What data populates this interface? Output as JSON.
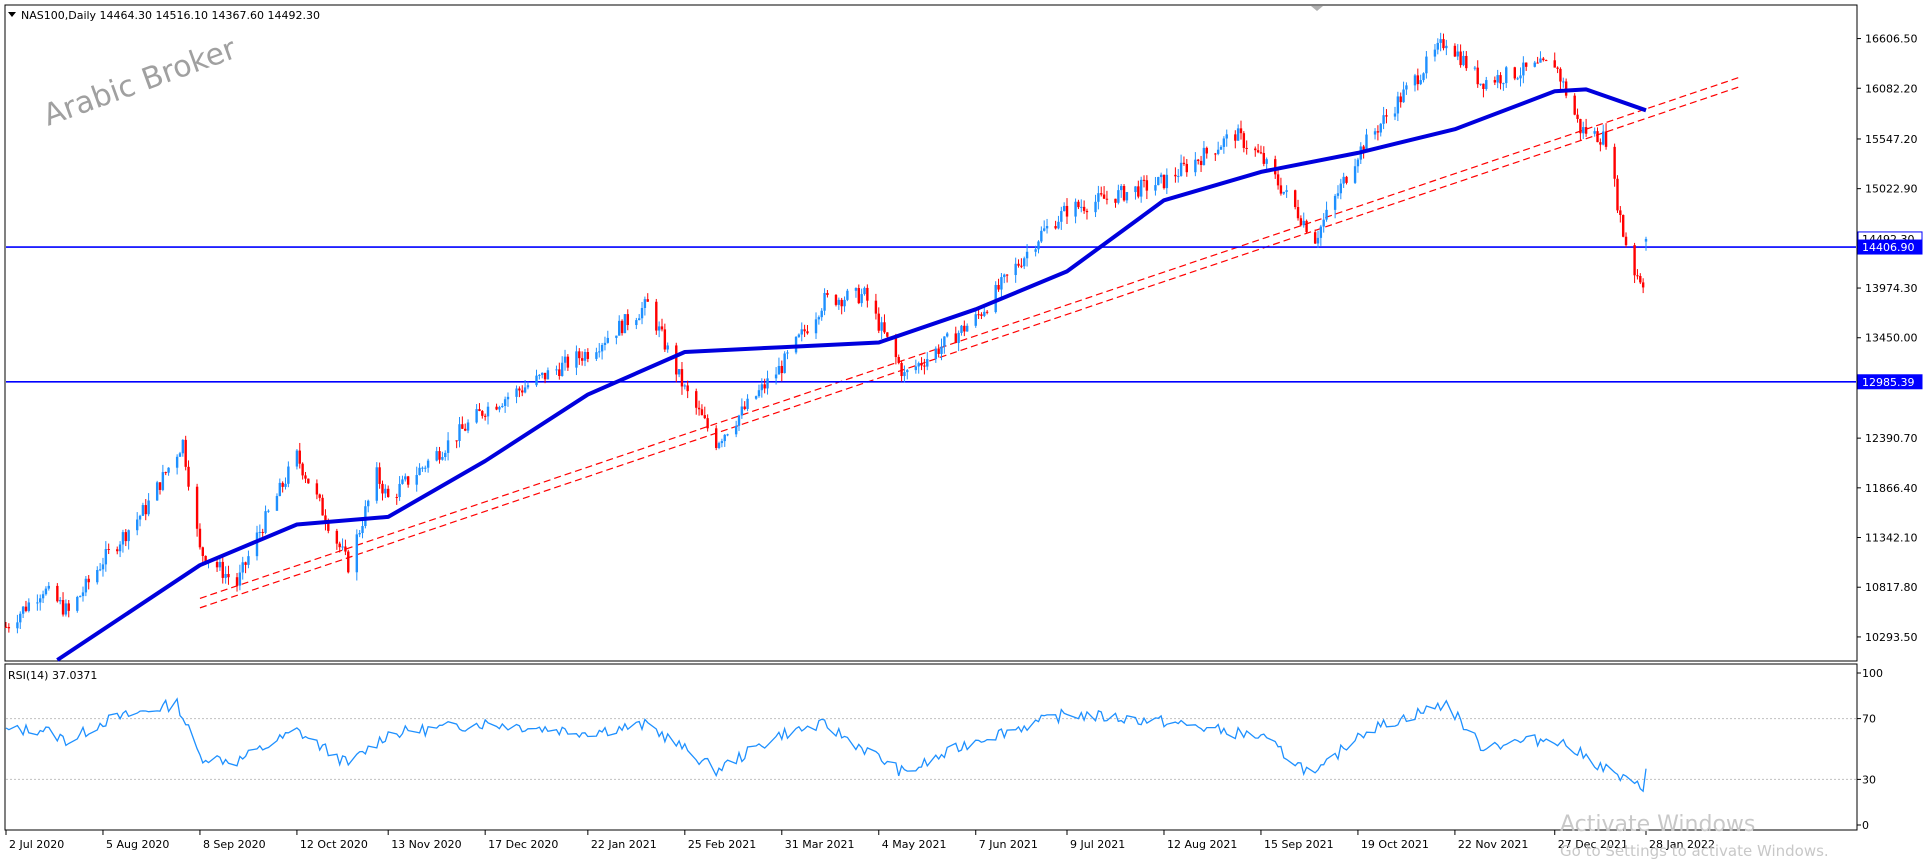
{
  "header": {
    "symbol_line": "NAS100,Daily  14464.30 14516.10 14367.60 14492.30",
    "menu_icon": "triangle-down-icon"
  },
  "watermark": "Arabic Broker",
  "activation": {
    "title": "Activate Windows",
    "subtitle": "Go to Settings to activate Windows."
  },
  "colors": {
    "candle_up": "#1E90FF",
    "candle_down": "#FF0000",
    "ma_line": "#0000DD",
    "trend_lines": "#FF0000",
    "hline": "#0000FF",
    "rsi_line": "#1E90FF",
    "rsi_levels": "#C0C0C0",
    "price_label_bg": "#0000FF"
  },
  "price_axis_ticks": [
    "16606.50",
    "16082.20",
    "15547.20",
    "15022.90",
    "14492.30",
    "13974.30",
    "13450.00",
    "12985.39",
    "12390.70",
    "11866.40",
    "11342.10",
    "10817.80",
    "10293.50"
  ],
  "price_labels": [
    {
      "text": "14492.30",
      "price": 14492.3,
      "style": "outline"
    },
    {
      "text": "14406.90",
      "price": 14406.9,
      "style": "filled"
    },
    {
      "text": "12985.39",
      "price": 12985.39,
      "style": "filled"
    }
  ],
  "rsi": {
    "label": "RSI(14) 37.0371",
    "ticks": [
      "100",
      "70",
      "30",
      "0"
    ],
    "levels": [
      70,
      30
    ],
    "ylim": [
      0,
      100
    ]
  },
  "time_axis_labels": [
    "2 Jul 2020",
    "5 Aug 2020",
    "8 Sep 2020",
    "12 Oct 2020",
    "13 Nov 2020",
    "17 Dec 2020",
    "22 Jan 2021",
    "25 Feb 2021",
    "31 Mar 2021",
    "4 May 2021",
    "7 Jun 2021",
    "9 Jul 2021",
    "12 Aug 2021",
    "15 Sep 2021",
    "19 Oct 2021",
    "22 Nov 2021",
    "27 Dec 2021",
    "28 Jan 2022"
  ],
  "chart_data": {
    "type": "candlestick",
    "title": "NAS100,Daily",
    "ohlc_last": {
      "open": 14464.3,
      "high": 14516.1,
      "low": 14367.6,
      "close": 14492.3
    },
    "ylim": [
      10050,
      16950
    ],
    "grid": false,
    "anchors": [
      {
        "x": "2 Jul 2020",
        "close": 10400
      },
      {
        "x": "15 Jul 2020",
        "close": 10800
      },
      {
        "x": "24 Jul 2020",
        "close": 10550
      },
      {
        "x": "5 Aug 2020",
        "close": 11100
      },
      {
        "x": "20 Aug 2020",
        "close": 11650
      },
      {
        "x": "2 Sep 2020",
        "close": 12350
      },
      {
        "x": "8 Sep 2020",
        "close": 11200
      },
      {
        "x": "21 Sep 2020",
        "close": 10850
      },
      {
        "x": "28 Sep 2020",
        "close": 11350
      },
      {
        "x": "12 Oct 2020",
        "close": 12200
      },
      {
        "x": "30 Oct 2020",
        "close": 11050
      },
      {
        "x": "9 Nov 2020",
        "close": 12000
      },
      {
        "x": "13 Nov 2020",
        "close": 11750
      },
      {
        "x": "17 Dec 2020",
        "close": 12700
      },
      {
        "x": "22 Jan 2021",
        "close": 13300
      },
      {
        "x": "12 Feb 2021",
        "close": 13800
      },
      {
        "x": "25 Feb 2021",
        "close": 12900
      },
      {
        "x": "8 Mar 2021",
        "close": 12350
      },
      {
        "x": "31 Mar 2021",
        "close": 13150
      },
      {
        "x": "15 Apr 2021",
        "close": 13850
      },
      {
        "x": "29 Apr 2021",
        "close": 13900
      },
      {
        "x": "13 May 2021",
        "close": 13050
      },
      {
        "x": "7 Jun 2021",
        "close": 13650
      },
      {
        "x": "30 Jun 2021",
        "close": 14550
      },
      {
        "x": "9 Jul 2021",
        "close": 14800
      },
      {
        "x": "12 Aug 2021",
        "close": 15100
      },
      {
        "x": "6 Sep 2021",
        "close": 15600
      },
      {
        "x": "15 Sep 2021",
        "close": 15350
      },
      {
        "x": "4 Oct 2021",
        "close": 14500
      },
      {
        "x": "19 Oct 2021",
        "close": 15400
      },
      {
        "x": "19 Nov 2021",
        "close": 16600
      },
      {
        "x": "1 Dec 2021",
        "close": 16150
      },
      {
        "x": "27 Dec 2021",
        "close": 16350
      },
      {
        "x": "5 Jan 2022",
        "close": 15650
      },
      {
        "x": "14 Jan 2022",
        "close": 15550
      },
      {
        "x": "20 Jan 2022",
        "close": 14550
      },
      {
        "x": "24 Jan 2022",
        "close": 14150
      },
      {
        "x": "27 Jan 2022",
        "close": 14050
      },
      {
        "x": "28 Jan 2022",
        "close": 14492.3
      }
    ],
    "moving_average": {
      "name": "",
      "points": [
        {
          "x": "20 Jul 2020",
          "value": 10050
        },
        {
          "x": "8 Sep 2020",
          "value": 11050
        },
        {
          "x": "12 Oct 2020",
          "value": 11480
        },
        {
          "x": "13 Nov 2020",
          "value": 11560
        },
        {
          "x": "17 Dec 2020",
          "value": 12150
        },
        {
          "x": "22 Jan 2021",
          "value": 12850
        },
        {
          "x": "25 Feb 2021",
          "value": 13300
        },
        {
          "x": "31 Mar 2021",
          "value": 13350
        },
        {
          "x": "4 May 2021",
          "value": 13400
        },
        {
          "x": "7 Jun 2021",
          "value": 13750
        },
        {
          "x": "9 Jul 2021",
          "value": 14150
        },
        {
          "x": "12 Aug 2021",
          "value": 14900
        },
        {
          "x": "15 Sep 2021",
          "value": 15200
        },
        {
          "x": "19 Oct 2021",
          "value": 15400
        },
        {
          "x": "22 Nov 2021",
          "value": 15650
        },
        {
          "x": "27 Dec 2021",
          "value": 16050
        },
        {
          "x": "7 Jan 2022",
          "value": 16070
        },
        {
          "x": "28 Jan 2022",
          "value": 15850
        }
      ]
    },
    "trend_lines": [
      {
        "from": {
          "x": "8 Sep 2020",
          "y": 10700
        },
        "to": {
          "x": "2 Mar 2022",
          "y": 16200
        }
      },
      {
        "from": {
          "x": "8 Sep 2020",
          "y": 10600
        },
        "to": {
          "x": "2 Mar 2022",
          "y": 16100
        }
      }
    ],
    "horizontal_lines": [
      14406.9,
      12985.39
    ],
    "rsi_series": {
      "name": "RSI(14)",
      "points": [
        {
          "x": "2 Jul 2020",
          "value": 62
        },
        {
          "x": "15 Jul 2020",
          "value": 63
        },
        {
          "x": "24 Jul 2020",
          "value": 55
        },
        {
          "x": "5 Aug 2020",
          "value": 68
        },
        {
          "x": "31 Aug 2020",
          "value": 80
        },
        {
          "x": "8 Sep 2020",
          "value": 45
        },
        {
          "x": "21 Sep 2020",
          "value": 42
        },
        {
          "x": "12 Oct 2020",
          "value": 62
        },
        {
          "x": "30 Oct 2020",
          "value": 40
        },
        {
          "x": "13 Nov 2020",
          "value": 60
        },
        {
          "x": "17 Dec 2020",
          "value": 67
        },
        {
          "x": "22 Jan 2021",
          "value": 61
        },
        {
          "x": "12 Feb 2021",
          "value": 66
        },
        {
          "x": "8 Mar 2021",
          "value": 36
        },
        {
          "x": "31 Mar 2021",
          "value": 60
        },
        {
          "x": "15 Apr 2021",
          "value": 66
        },
        {
          "x": "13 May 2021",
          "value": 34
        },
        {
          "x": "7 Jun 2021",
          "value": 56
        },
        {
          "x": "9 Jul 2021",
          "value": 73
        },
        {
          "x": "12 Aug 2021",
          "value": 68
        },
        {
          "x": "15 Sep 2021",
          "value": 58
        },
        {
          "x": "4 Oct 2021",
          "value": 32
        },
        {
          "x": "19 Oct 2021",
          "value": 60
        },
        {
          "x": "19 Nov 2021",
          "value": 80
        },
        {
          "x": "1 Dec 2021",
          "value": 52
        },
        {
          "x": "27 Dec 2021",
          "value": 57
        },
        {
          "x": "20 Jan 2022",
          "value": 30
        },
        {
          "x": "27 Jan 2022",
          "value": 24
        },
        {
          "x": "28 Jan 2022",
          "value": 37
        }
      ]
    }
  }
}
